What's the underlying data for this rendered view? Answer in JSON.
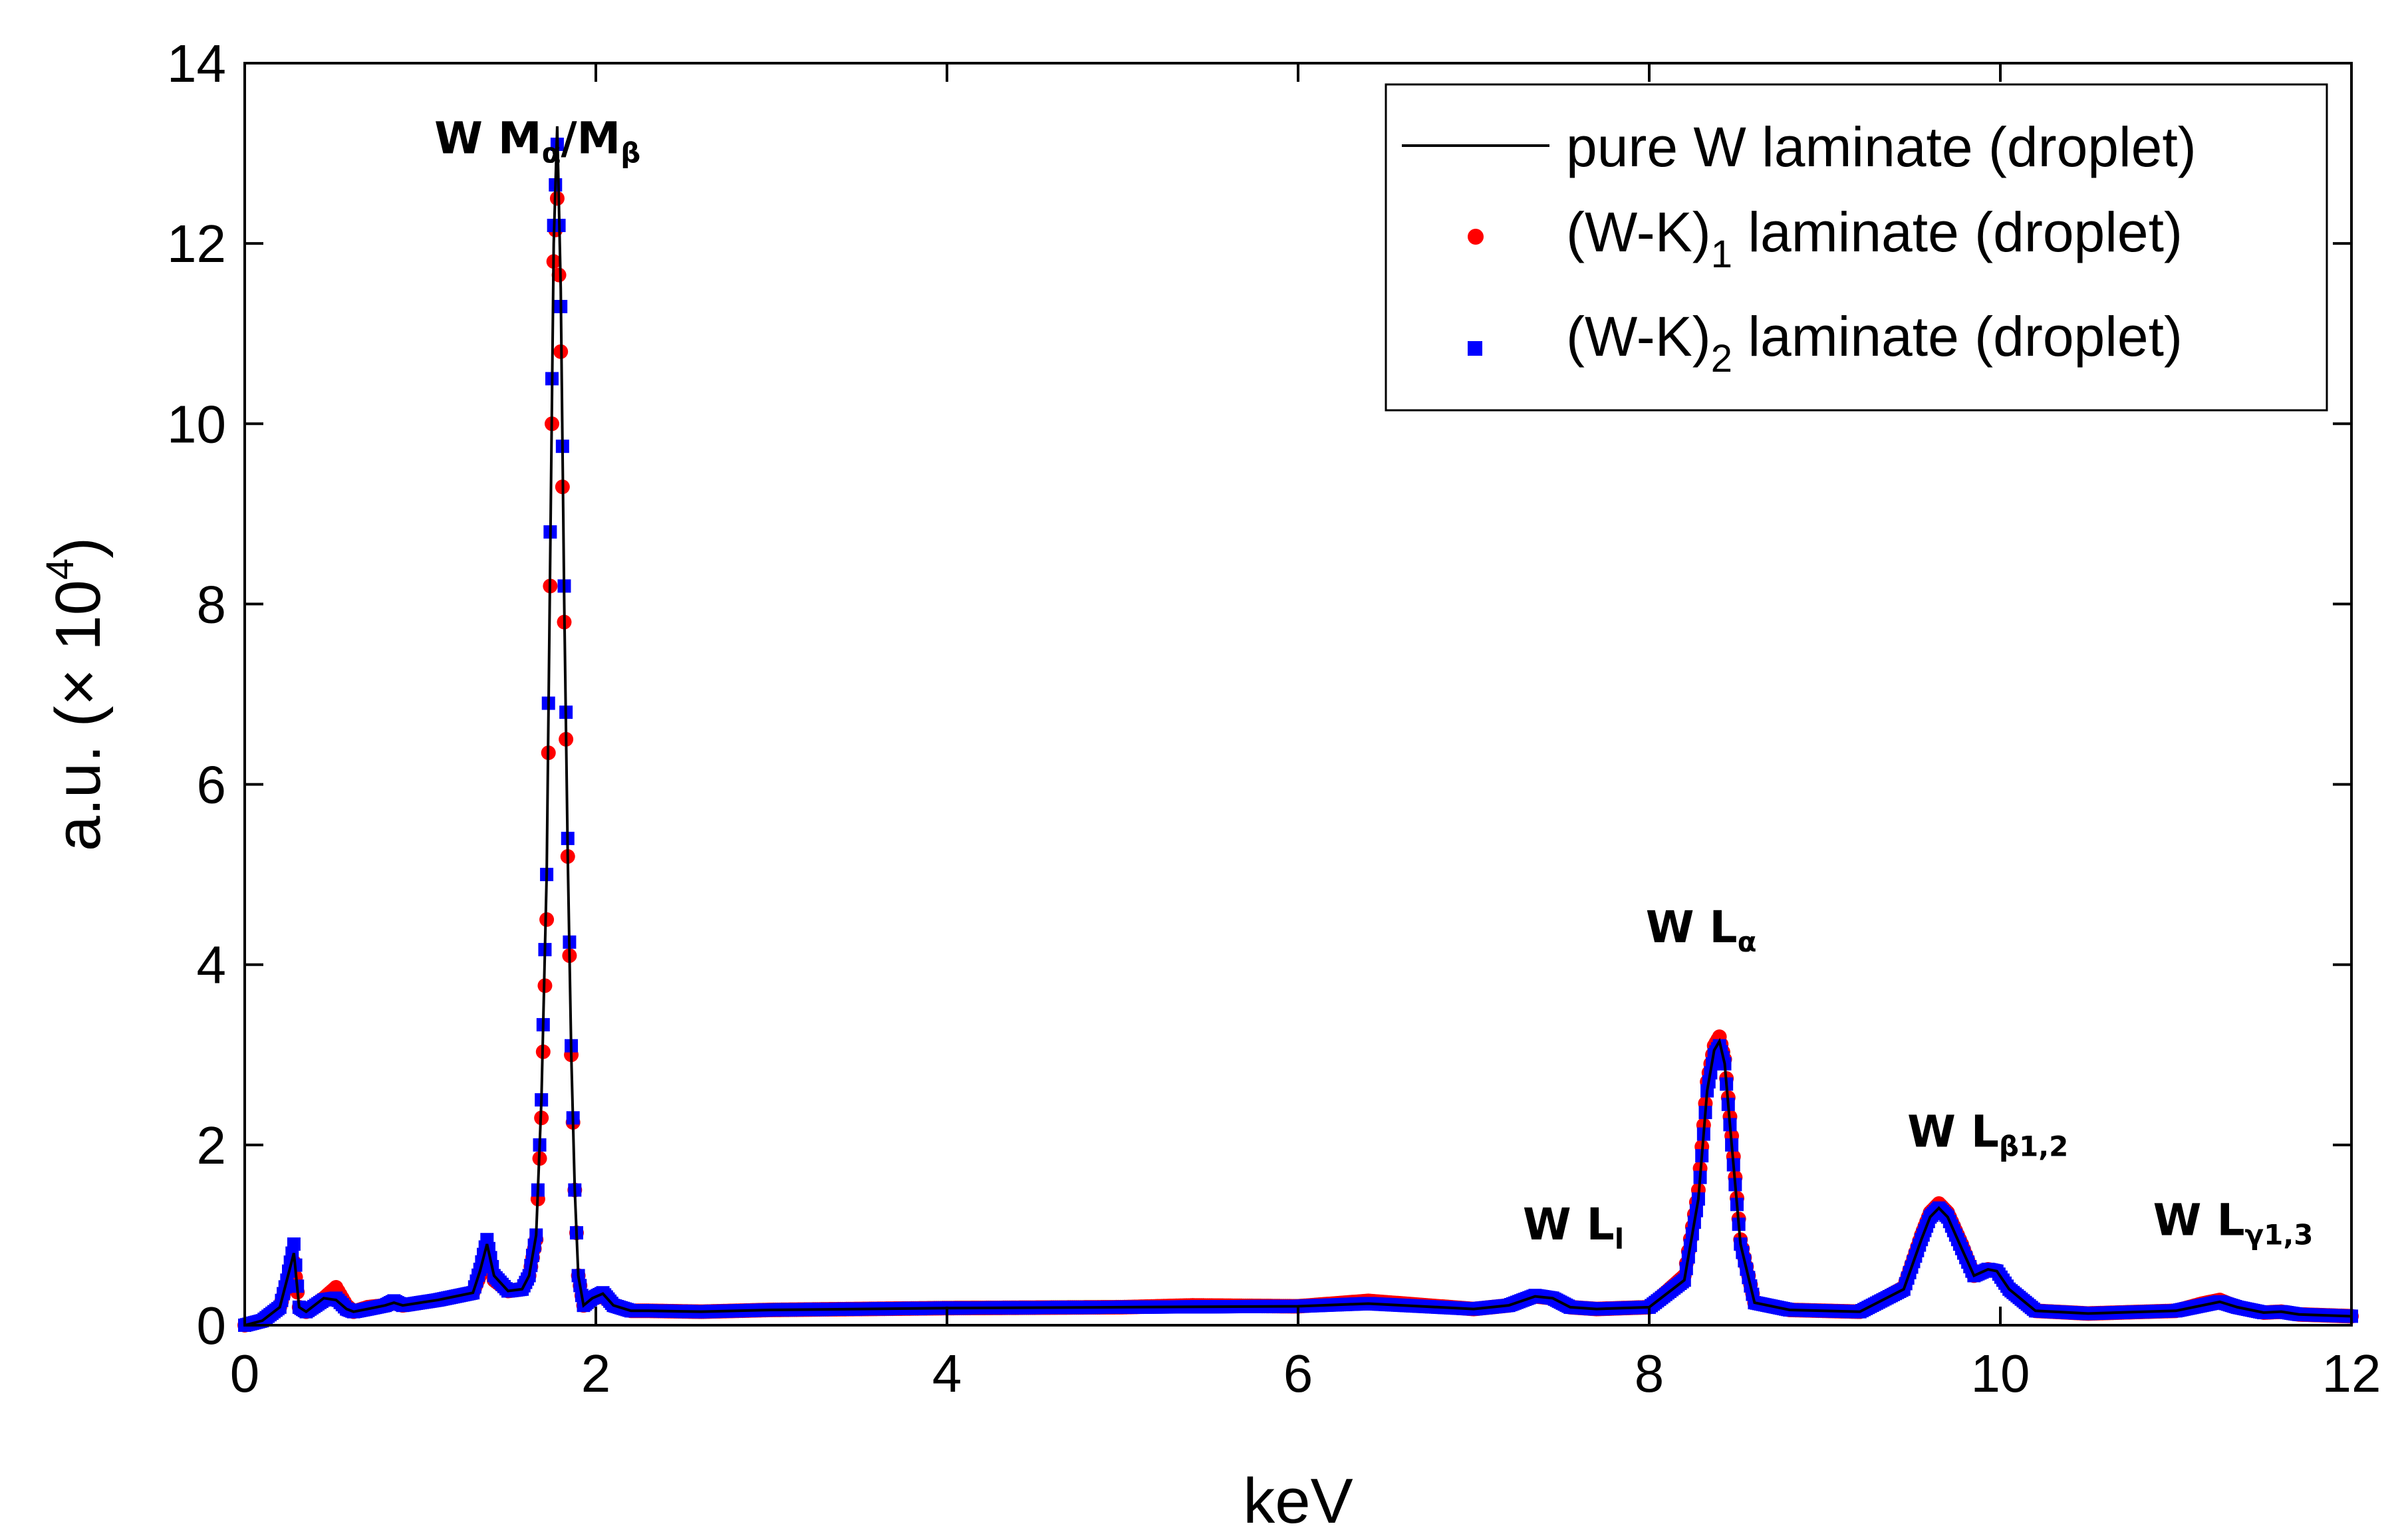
{
  "chart_data": {
    "type": "line",
    "title": "",
    "xlabel": "keV",
    "ylabel_prefix": "a.u. (",
    "ylabel_times": "×",
    "ylabel_base": " 10",
    "ylabel_exp": "4",
    "ylabel_suffix": ")",
    "xlim": [
      0,
      12
    ],
    "ylim": [
      0,
      14
    ],
    "xticks": [
      0,
      2,
      4,
      6,
      8,
      10,
      12
    ],
    "yticks": [
      0,
      2,
      4,
      6,
      8,
      10,
      12,
      14
    ],
    "xtick_labels": [
      "0",
      "2",
      "4",
      "6",
      "8",
      "10",
      "12"
    ],
    "ytick_labels": [
      "0",
      "2",
      "4",
      "6",
      "8",
      "10",
      "12",
      "14"
    ],
    "grid": false,
    "legend": {
      "position": "top-right",
      "entries": [
        {
          "id": "pure",
          "text": "pure W laminate (droplet)",
          "sub": "",
          "rest": "",
          "color": "#000000",
          "marker": "line"
        },
        {
          "id": "wk1",
          "text": "(W-K)",
          "sub": "1",
          "rest": " laminate (droplet)",
          "color": "#ff0000",
          "marker": "circle"
        },
        {
          "id": "wk2",
          "text": "(W-K)",
          "sub": "2",
          "rest": " laminate (droplet)",
          "color": "#0000ff",
          "marker": "square"
        }
      ]
    },
    "annotations": [
      {
        "id": "ma",
        "main": "W M",
        "sub1": "α",
        "mid": "/M",
        "sub2": "β",
        "x": 1.08,
        "y": 13.0
      },
      {
        "id": "la",
        "main": "W L",
        "sub1": "α",
        "mid": "",
        "sub2": "",
        "x": 7.98,
        "y": 4.25
      },
      {
        "id": "lb",
        "main": "W L",
        "sub1": "β1,2",
        "mid": "",
        "sub2": "",
        "x": 9.47,
        "y": 1.98
      },
      {
        "id": "ll",
        "main": "W L",
        "sub1": "l",
        "mid": "",
        "sub2": "",
        "x": 7.28,
        "y": 0.95
      },
      {
        "id": "lg",
        "main": "W L",
        "sub1": "γ1,3",
        "mid": "",
        "sub2": "",
        "x": 10.87,
        "y": 1.0
      }
    ],
    "series": [
      {
        "name": "pure W laminate (droplet)",
        "color": "#000000",
        "style": "line",
        "x": [
          0.0,
          0.1,
          0.2,
          0.24,
          0.28,
          0.31,
          0.35,
          0.45,
          0.52,
          0.58,
          0.62,
          0.7,
          0.8,
          0.85,
          0.9,
          1.0,
          1.1,
          1.2,
          1.3,
          1.34,
          1.38,
          1.42,
          1.5,
          1.58,
          1.62,
          1.66,
          1.69,
          1.72,
          1.74,
          1.76,
          1.78,
          1.8,
          1.82,
          1.84,
          1.86,
          1.88,
          1.9,
          1.93,
          1.98,
          2.04,
          2.1,
          2.2,
          2.3,
          2.6,
          3.0,
          4.0,
          5.0,
          6.0,
          6.4,
          7.0,
          7.2,
          7.35,
          7.45,
          7.55,
          7.7,
          8.0,
          8.2,
          8.28,
          8.33,
          8.37,
          8.4,
          8.43,
          8.47,
          8.52,
          8.6,
          8.8,
          9.2,
          9.45,
          9.55,
          9.6,
          9.65,
          9.7,
          9.78,
          9.85,
          9.93,
          9.98,
          10.05,
          10.2,
          10.5,
          11.0,
          11.15,
          11.25,
          11.35,
          11.5,
          11.6,
          11.7,
          12.0
        ],
        "y": [
          0.0,
          0.05,
          0.2,
          0.5,
          0.8,
          0.2,
          0.15,
          0.3,
          0.28,
          0.18,
          0.15,
          0.18,
          0.22,
          0.25,
          0.22,
          0.25,
          0.28,
          0.32,
          0.36,
          0.6,
          0.9,
          0.55,
          0.38,
          0.4,
          0.55,
          1.0,
          2.5,
          5.0,
          8.5,
          12.0,
          13.3,
          11.5,
          8.0,
          5.2,
          3.0,
          1.5,
          0.55,
          0.22,
          0.3,
          0.35,
          0.22,
          0.16,
          0.16,
          0.15,
          0.17,
          0.19,
          0.2,
          0.21,
          0.24,
          0.18,
          0.22,
          0.32,
          0.3,
          0.2,
          0.18,
          0.2,
          0.5,
          1.4,
          2.6,
          3.05,
          3.15,
          2.9,
          2.0,
          0.9,
          0.25,
          0.17,
          0.15,
          0.4,
          0.95,
          1.2,
          1.3,
          1.2,
          0.85,
          0.55,
          0.62,
          0.6,
          0.4,
          0.16,
          0.13,
          0.16,
          0.22,
          0.26,
          0.2,
          0.14,
          0.15,
          0.12,
          0.1
        ]
      },
      {
        "name": "(W-K)1 laminate (droplet)",
        "color": "#ff0000",
        "style": "circle",
        "x": [
          0.0,
          0.1,
          0.2,
          0.24,
          0.28,
          0.31,
          0.35,
          0.45,
          0.52,
          0.58,
          0.62,
          0.7,
          0.8,
          0.85,
          0.9,
          1.0,
          1.1,
          1.2,
          1.3,
          1.34,
          1.38,
          1.42,
          1.5,
          1.58,
          1.62,
          1.66,
          1.69,
          1.72,
          1.74,
          1.76,
          1.78,
          1.8,
          1.82,
          1.84,
          1.86,
          1.88,
          1.9,
          1.93,
          1.98,
          2.04,
          2.1,
          2.2,
          2.3,
          2.6,
          3.0,
          4.0,
          5.0,
          5.4,
          6.0,
          6.4,
          7.0,
          7.2,
          7.35,
          7.45,
          7.55,
          7.7,
          8.0,
          8.2,
          8.28,
          8.33,
          8.37,
          8.4,
          8.43,
          8.47,
          8.52,
          8.6,
          8.8,
          9.2,
          9.45,
          9.55,
          9.6,
          9.65,
          9.7,
          9.78,
          9.85,
          9.93,
          9.98,
          10.05,
          10.2,
          10.5,
          11.0,
          11.15,
          11.25,
          11.35,
          11.5,
          11.6,
          11.7,
          12.0
        ],
        "y": [
          0.0,
          0.05,
          0.2,
          0.45,
          0.7,
          0.2,
          0.15,
          0.3,
          0.42,
          0.22,
          0.15,
          0.2,
          0.22,
          0.25,
          0.22,
          0.25,
          0.28,
          0.32,
          0.36,
          0.55,
          0.8,
          0.5,
          0.38,
          0.4,
          0.55,
          0.95,
          2.3,
          4.5,
          8.2,
          11.8,
          12.5,
          10.8,
          7.8,
          5.2,
          3.0,
          1.5,
          0.55,
          0.22,
          0.3,
          0.32,
          0.22,
          0.16,
          0.16,
          0.15,
          0.17,
          0.19,
          0.2,
          0.22,
          0.21,
          0.27,
          0.18,
          0.22,
          0.32,
          0.3,
          0.2,
          0.18,
          0.2,
          0.55,
          1.5,
          2.7,
          3.1,
          3.2,
          2.95,
          2.1,
          0.95,
          0.25,
          0.17,
          0.15,
          0.42,
          1.0,
          1.25,
          1.35,
          1.25,
          0.9,
          0.55,
          0.62,
          0.6,
          0.4,
          0.16,
          0.13,
          0.16,
          0.24,
          0.28,
          0.2,
          0.14,
          0.15,
          0.12,
          0.1
        ]
      },
      {
        "name": "(W-K)2 laminate (droplet)",
        "color": "#0000ff",
        "style": "square",
        "x": [
          0.0,
          0.1,
          0.2,
          0.24,
          0.28,
          0.31,
          0.35,
          0.45,
          0.52,
          0.58,
          0.62,
          0.7,
          0.8,
          0.85,
          0.9,
          1.0,
          1.1,
          1.2,
          1.3,
          1.34,
          1.38,
          1.42,
          1.5,
          1.58,
          1.62,
          1.66,
          1.69,
          1.72,
          1.74,
          1.76,
          1.78,
          1.8,
          1.82,
          1.84,
          1.86,
          1.88,
          1.9,
          1.93,
          1.98,
          2.04,
          2.1,
          2.2,
          2.3,
          2.6,
          3.0,
          4.0,
          5.0,
          6.0,
          6.4,
          7.0,
          7.2,
          7.35,
          7.45,
          7.55,
          7.7,
          8.0,
          8.2,
          8.28,
          8.33,
          8.37,
          8.4,
          8.43,
          8.47,
          8.52,
          8.6,
          8.8,
          9.2,
          9.45,
          9.55,
          9.6,
          9.65,
          9.7,
          9.78,
          9.85,
          9.93,
          9.98,
          10.05,
          10.2,
          10.5,
          11.0,
          11.15,
          11.25,
          11.35,
          11.5,
          11.6,
          11.7,
          12.0
        ],
        "y": [
          0.0,
          0.05,
          0.2,
          0.5,
          0.9,
          0.2,
          0.15,
          0.28,
          0.3,
          0.18,
          0.15,
          0.18,
          0.22,
          0.27,
          0.22,
          0.25,
          0.28,
          0.32,
          0.36,
          0.62,
          0.95,
          0.55,
          0.38,
          0.4,
          0.55,
          1.0,
          2.5,
          5.0,
          8.8,
          12.2,
          13.1,
          11.3,
          8.2,
          5.4,
          3.1,
          1.5,
          0.55,
          0.22,
          0.3,
          0.36,
          0.22,
          0.16,
          0.16,
          0.15,
          0.17,
          0.19,
          0.2,
          0.21,
          0.24,
          0.18,
          0.22,
          0.33,
          0.3,
          0.2,
          0.18,
          0.2,
          0.5,
          1.4,
          2.6,
          3.0,
          3.1,
          2.9,
          2.0,
          0.9,
          0.25,
          0.17,
          0.15,
          0.4,
          0.95,
          1.2,
          1.3,
          1.2,
          0.85,
          0.55,
          0.62,
          0.6,
          0.4,
          0.16,
          0.13,
          0.16,
          0.22,
          0.26,
          0.2,
          0.14,
          0.15,
          0.12,
          0.1
        ]
      }
    ]
  }
}
